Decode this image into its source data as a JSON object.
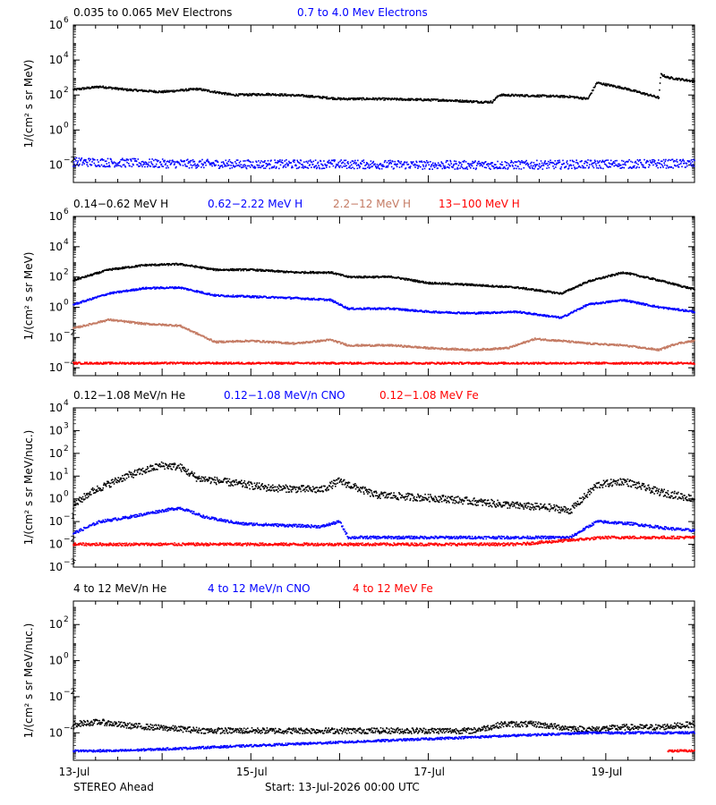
{
  "page": {
    "footer_left": "STEREO Ahead",
    "footer_start": "Start: 13-Jul-2026 00:00 UTC"
  },
  "chart_data": [
    {
      "type": "scatter",
      "legend": [
        {
          "label": "0.035 to 0.065 MeV Electrons",
          "color": "#000000"
        },
        {
          "label": "0.7 to 4.0 Mev Electrons",
          "color": "#0000ff"
        }
      ],
      "ylabel": "1/(cm² s sr MeV)",
      "yscale": "log",
      "ylim": [
        0.001,
        1000000
      ],
      "ytick_exponents": [
        -2,
        0,
        2,
        4,
        6
      ],
      "xlim": [
        13,
        20
      ],
      "series": [
        {
          "name": "0.035 to 0.065 MeV Electrons",
          "color": "#000000",
          "x": [
            13.0,
            13.3,
            13.6,
            14.0,
            14.4,
            14.8,
            15.2,
            15.6,
            16.0,
            16.4,
            16.8,
            17.2,
            17.6,
            17.72,
            17.8,
            18.2,
            18.6,
            18.8,
            18.9,
            19.2,
            19.6,
            19.62,
            19.7,
            20.0
          ],
          "y": [
            200,
            300,
            200,
            150,
            220,
            100,
            110,
            90,
            60,
            60,
            55,
            50,
            40,
            40,
            100,
            90,
            80,
            60,
            500,
            250,
            70,
            1500,
            1000,
            600
          ]
        },
        {
          "name": "0.7 to 4.0 Mev Electrons",
          "color": "#0000ff",
          "x": [
            13.0,
            14.0,
            15.0,
            16.0,
            17.0,
            18.0,
            19.0,
            20.0
          ],
          "y": [
            0.015,
            0.012,
            0.011,
            0.011,
            0.01,
            0.01,
            0.011,
            0.012
          ]
        }
      ]
    },
    {
      "type": "scatter",
      "legend": [
        {
          "label": "0.14−0.62 MeV H",
          "color": "#000000"
        },
        {
          "label": "0.62−2.22 MeV H",
          "color": "#0000ff"
        },
        {
          "label": "2.2−12 MeV H",
          "color": "#c47a63"
        },
        {
          "label": "13−100 MeV H",
          "color": "#ff0000"
        }
      ],
      "ylabel": "1/(cm² s sr MeV)",
      "yscale": "log",
      "ylim": [
        3e-05,
        1000000
      ],
      "ytick_exponents": [
        -4,
        -2,
        0,
        2,
        4,
        6
      ],
      "xlim": [
        13,
        20
      ],
      "series": [
        {
          "name": "0.14−0.62 MeV H",
          "color": "#000000",
          "x": [
            13.0,
            13.4,
            13.8,
            14.2,
            14.6,
            15.0,
            15.5,
            15.9,
            16.1,
            16.6,
            17.0,
            17.5,
            18.0,
            18.5,
            18.8,
            19.2,
            19.6,
            20.0
          ],
          "y": [
            60,
            300,
            600,
            700,
            300,
            300,
            200,
            200,
            100,
            100,
            40,
            30,
            20,
            8,
            50,
            200,
            60,
            15
          ]
        },
        {
          "name": "0.62−2.22 MeV H",
          "color": "#0000ff",
          "x": [
            13.0,
            13.4,
            13.8,
            14.2,
            14.6,
            15.0,
            15.5,
            15.9,
            16.1,
            16.6,
            17.0,
            17.5,
            18.0,
            18.5,
            18.8,
            19.2,
            19.6,
            20.0
          ],
          "y": [
            1.5,
            8,
            18,
            20,
            6,
            5,
            4,
            3,
            0.8,
            0.8,
            0.5,
            0.4,
            0.5,
            0.2,
            1.5,
            3,
            1,
            0.5
          ]
        },
        {
          "name": "2.2−12 MeV H",
          "color": "#c47a63",
          "x": [
            13.0,
            13.4,
            13.8,
            14.2,
            14.6,
            15.0,
            15.5,
            15.9,
            16.1,
            16.6,
            17.0,
            17.5,
            17.9,
            18.2,
            18.5,
            18.8,
            19.2,
            19.6,
            19.8,
            20.0
          ],
          "y": [
            0.04,
            0.15,
            0.08,
            0.06,
            0.005,
            0.006,
            0.004,
            0.007,
            0.003,
            0.003,
            0.002,
            0.0015,
            0.002,
            0.008,
            0.006,
            0.004,
            0.003,
            0.0015,
            0.004,
            0.006
          ]
        },
        {
          "name": "13−100 MeV H",
          "color": "#ff0000",
          "x": [
            13.0,
            14.0,
            15.0,
            16.0,
            17.0,
            18.0,
            19.0,
            20.0
          ],
          "y": [
            0.0002,
            0.0002,
            0.0002,
            0.0002,
            0.0002,
            0.0002,
            0.0002,
            0.0002
          ]
        }
      ]
    },
    {
      "type": "scatter",
      "legend": [
        {
          "label": "0.12−1.08 MeV/n He",
          "color": "#000000"
        },
        {
          "label": "0.12−1.08 MeV/n CNO",
          "color": "#0000ff"
        },
        {
          "label": "0.12−1.08 MeV Fe",
          "color": "#ff0000"
        }
      ],
      "ylabel": "1/(cm² s sr MeV/nuc.)",
      "yscale": "log",
      "ylim": [
        0.001,
        10000
      ],
      "ytick_exponents": [
        -3,
        -2,
        -1,
        0,
        1,
        2,
        3,
        4
      ],
      "xlim": [
        13,
        20
      ],
      "series": [
        {
          "name": "0.12−1.08 MeV/n He",
          "color": "#000000",
          "x": [
            13.0,
            13.2,
            13.6,
            14.0,
            14.2,
            14.4,
            14.8,
            15.2,
            15.8,
            16.0,
            16.4,
            16.8,
            17.2,
            17.6,
            18.0,
            18.4,
            18.6,
            18.9,
            19.2,
            19.6,
            20.0
          ],
          "y": [
            0.5,
            2,
            10,
            30,
            25,
            8,
            5,
            3,
            2.5,
            6,
            1.5,
            1.2,
            1.0,
            0.7,
            0.5,
            0.4,
            0.3,
            4,
            6,
            2,
            1
          ]
        },
        {
          "name": "0.12−1.08 MeV/n CNO",
          "color": "#0000ff",
          "x": [
            13.0,
            13.3,
            13.6,
            14.0,
            14.2,
            14.5,
            14.9,
            15.3,
            15.8,
            16.0,
            16.1,
            17.0,
            18.0,
            18.6,
            18.9,
            19.3,
            19.7,
            20.0
          ],
          "y": [
            0.03,
            0.1,
            0.15,
            0.3,
            0.4,
            0.15,
            0.08,
            0.07,
            0.06,
            0.1,
            0.02,
            0.02,
            0.02,
            0.02,
            0.1,
            0.08,
            0.05,
            0.04
          ]
        },
        {
          "name": "0.12−1.08 MeV Fe",
          "color": "#ff0000",
          "x": [
            13.0,
            14.0,
            15.0,
            16.0,
            17.0,
            18.0,
            19.0,
            20.0
          ],
          "y": [
            0.01,
            0.01,
            0.01,
            0.01,
            0.01,
            0.01,
            0.02,
            0.02
          ]
        }
      ]
    },
    {
      "type": "scatter",
      "legend": [
        {
          "label": "4 to 12 MeV/n He",
          "color": "#000000"
        },
        {
          "label": "4 to 12 MeV/n CNO",
          "color": "#0000ff"
        },
        {
          "label": "4 to 12 MeV Fe",
          "color": "#ff0000"
        }
      ],
      "ylabel": "1/(cm² s sr MeV/nuc.)",
      "yscale": "log",
      "ylim": [
        3e-06,
        2000
      ],
      "ytick_exponents": [
        -4,
        -2,
        0,
        2
      ],
      "xlim": [
        13,
        20
      ],
      "xtick_labels": [
        {
          "x": 13,
          "label": "13-Jul"
        },
        {
          "x": 15,
          "label": "15-Jul"
        },
        {
          "x": 17,
          "label": "17-Jul"
        },
        {
          "x": 19,
          "label": "19-Jul"
        }
      ],
      "series": [
        {
          "name": "4 to 12 MeV/n He",
          "color": "#000000",
          "x": [
            13.0,
            13.3,
            13.6,
            14.5,
            15.0,
            15.5,
            16.0,
            16.5,
            17.0,
            17.5,
            17.85,
            18.2,
            18.5,
            18.8,
            19.2,
            19.6,
            20.0
          ],
          "y": [
            0.0003,
            0.0004,
            0.00025,
            0.00013,
            0.00013,
            0.00013,
            0.00013,
            0.00013,
            0.00013,
            0.00013,
            0.0003,
            0.0003,
            0.0002,
            0.00015,
            0.0002,
            0.0002,
            0.0003
          ]
        },
        {
          "name": "4 to 12 MeV/n CNO",
          "color": "#0000ff",
          "x": [
            13.0,
            13.5,
            18.8,
            19.4,
            20.0
          ],
          "y": [
            1e-05,
            1e-05,
            0.0001,
            0.0001,
            0.0001
          ]
        },
        {
          "name": "4 to 12 MeV Fe",
          "color": "#ff0000",
          "x": [
            19.7,
            20.0
          ],
          "y": [
            1e-05,
            1e-05
          ]
        }
      ]
    }
  ]
}
